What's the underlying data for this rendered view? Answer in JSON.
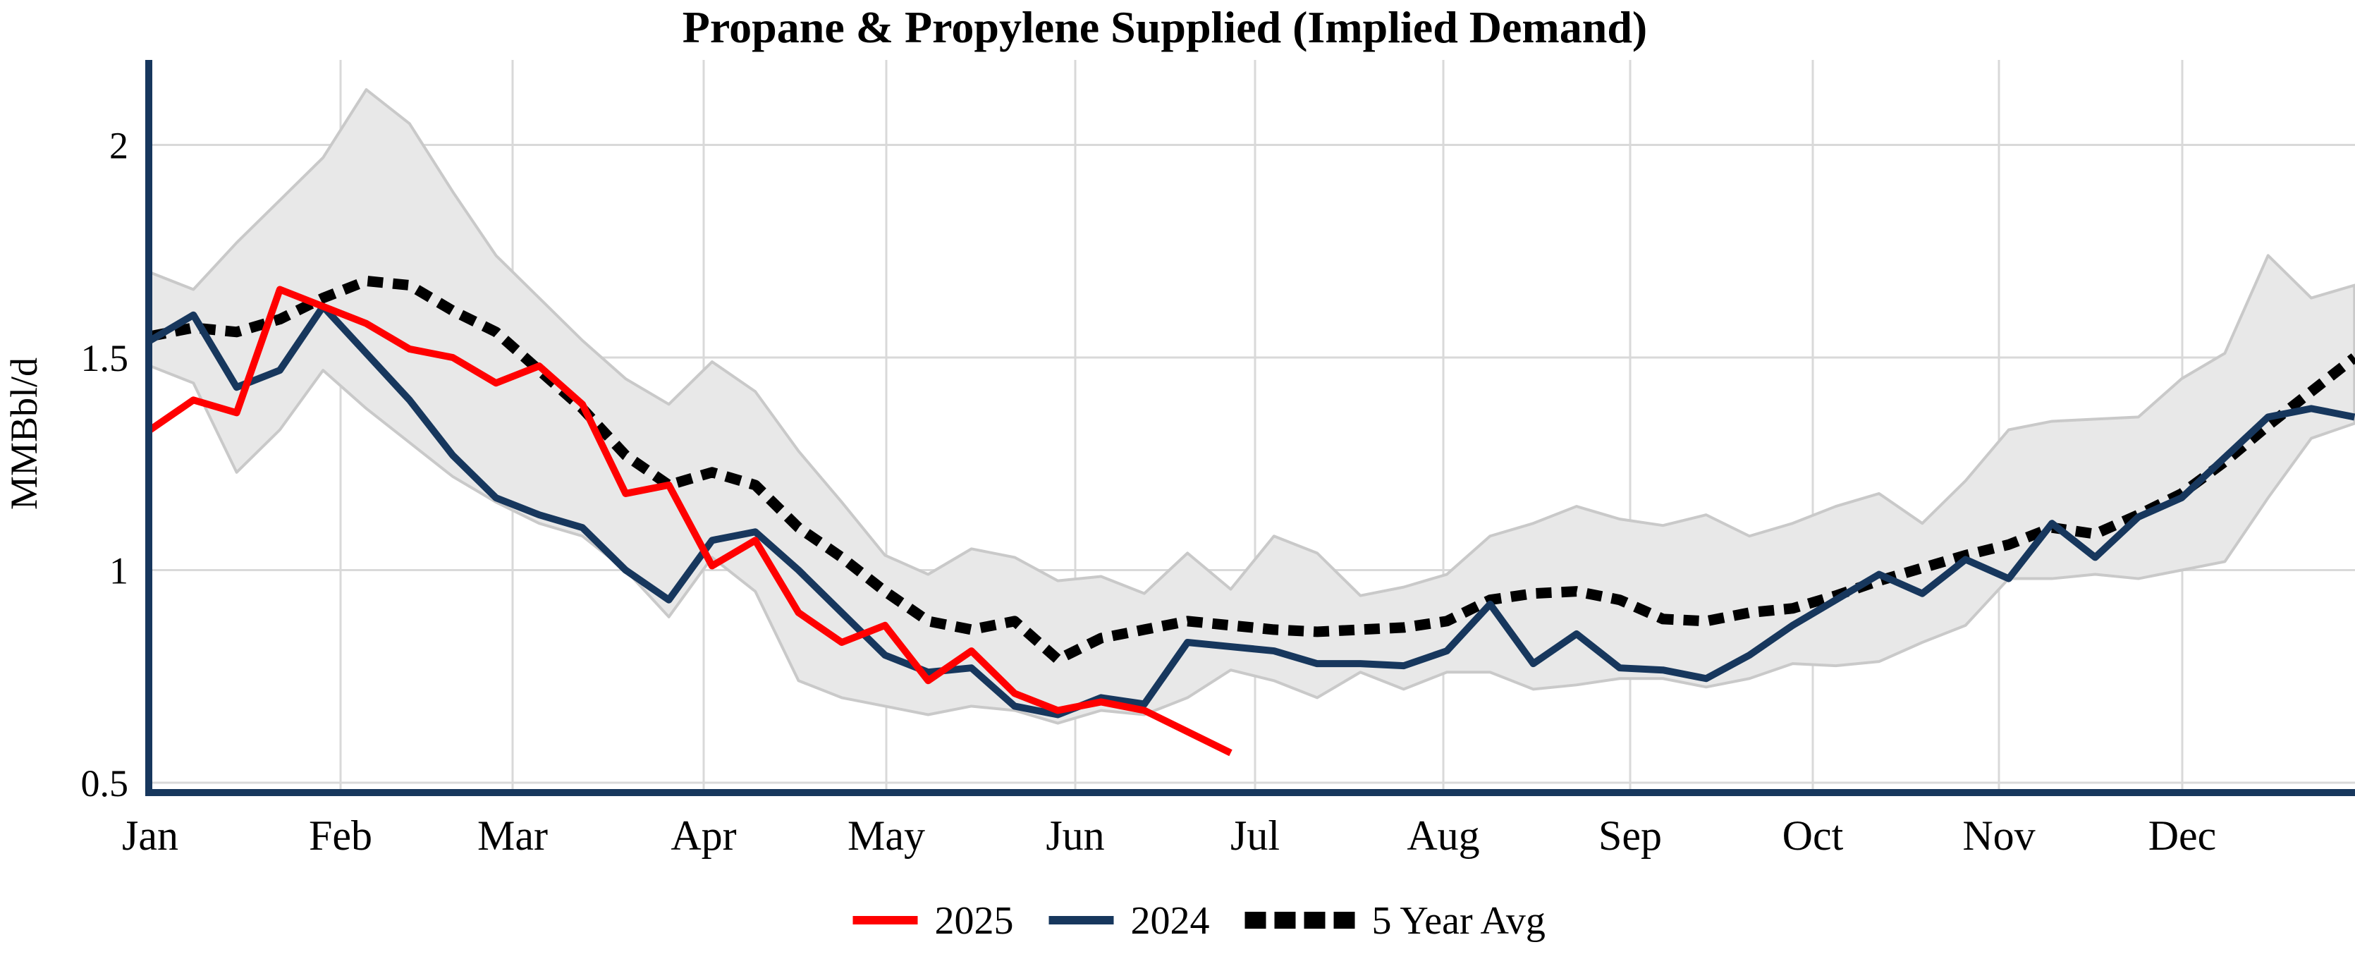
{
  "title": "Propane & Propylene Supplied (Implied Demand)",
  "y_axis": {
    "label": "MMBbl/d",
    "ticks": [
      {
        "label": "2",
        "value": 2.0
      },
      {
        "label": "1.5",
        "value": 1.5
      },
      {
        "label": "1",
        "value": 1.0
      },
      {
        "label": "0.5",
        "value": 0.5
      }
    ]
  },
  "x_axis": {
    "labels": [
      "Jan",
      "Feb",
      "Mar",
      "Apr",
      "May",
      "Jun",
      "Jul",
      "Aug",
      "Sep",
      "Oct",
      "Nov",
      "Dec"
    ]
  },
  "legend": {
    "items": [
      {
        "label": "2025",
        "color": "#ff0000",
        "style": "solid"
      },
      {
        "label": "2024",
        "color": "#17375d",
        "style": "solid"
      },
      {
        "label": "5 Year Avg",
        "color": "#000000",
        "style": "dotted"
      }
    ]
  },
  "colors": {
    "series_2025": "#ff0000",
    "series_2024": "#17375d",
    "series_avg": "#000000",
    "band_fill": "#e8e8e8",
    "band_edge": "#c9c9c9",
    "gridline": "#d9d9d9",
    "axis": "#17375d",
    "background": "#ffffff"
  },
  "chart_data": {
    "type": "line",
    "title": "Propane & Propylene Supplied (Implied Demand)",
    "ylabel": "MMBbl/d",
    "xlabel": "",
    "ylim": [
      0.5,
      2.2
    ],
    "yticks": [
      0.5,
      1.0,
      1.5,
      2.0
    ],
    "x_categories_months": [
      "Jan",
      "Feb",
      "Mar",
      "Apr",
      "May",
      "Jun",
      "Jul",
      "Aug",
      "Sep",
      "Oct",
      "Nov",
      "Dec"
    ],
    "x_unit": "weekly points (week 1 = early Jan through week 52 = late Dec)",
    "grid": true,
    "legend_position": "bottom-center",
    "series": [
      {
        "name": "2025",
        "color": "#ff0000",
        "line_style": "solid",
        "weeks": 26,
        "values": [
          1.33,
          1.4,
          1.37,
          1.66,
          1.62,
          1.58,
          1.52,
          1.5,
          1.44,
          1.48,
          1.39,
          1.18,
          1.2,
          1.01,
          1.07,
          0.9,
          0.83,
          0.87,
          0.74,
          0.81,
          0.71,
          0.67,
          0.69,
          0.67,
          0.62,
          0.57
        ]
      },
      {
        "name": "2024",
        "color": "#17375d",
        "line_style": "solid",
        "weeks": 52,
        "values": [
          1.54,
          1.6,
          1.43,
          1.47,
          1.62,
          1.51,
          1.4,
          1.27,
          1.17,
          1.13,
          1.1,
          1.0,
          0.93,
          1.07,
          1.09,
          1.0,
          0.9,
          0.8,
          0.76,
          0.77,
          0.68,
          0.66,
          0.7,
          0.685,
          0.83,
          0.82,
          0.81,
          0.78,
          0.78,
          0.775,
          0.81,
          0.92,
          0.78,
          0.85,
          0.77,
          0.765,
          0.745,
          0.8,
          0.87,
          0.93,
          0.99,
          0.945,
          1.025,
          0.98,
          1.11,
          1.03,
          1.125,
          1.17,
          1.265,
          1.36,
          1.38,
          1.36
        ]
      },
      {
        "name": "5 Year Avg",
        "color": "#000000",
        "line_style": "dotted",
        "weeks": 52,
        "values": [
          1.55,
          1.57,
          1.56,
          1.59,
          1.64,
          1.68,
          1.67,
          1.61,
          1.56,
          1.47,
          1.38,
          1.27,
          1.2,
          1.23,
          1.2,
          1.1,
          1.03,
          0.95,
          0.88,
          0.86,
          0.88,
          0.79,
          0.84,
          0.86,
          0.88,
          0.87,
          0.86,
          0.855,
          0.86,
          0.865,
          0.88,
          0.93,
          0.945,
          0.95,
          0.93,
          0.885,
          0.88,
          0.9,
          0.91,
          0.94,
          0.975,
          1.005,
          1.035,
          1.06,
          1.1,
          1.085,
          1.13,
          1.18,
          1.255,
          1.34,
          1.42,
          1.5
        ]
      }
    ],
    "band": {
      "name": "5-year range",
      "fill": "#e8e8e8",
      "edge": "#c9c9c9",
      "weeks": 52,
      "max": [
        1.7,
        1.66,
        1.77,
        1.87,
        1.97,
        2.13,
        2.05,
        1.89,
        1.74,
        1.64,
        1.54,
        1.45,
        1.39,
        1.49,
        1.42,
        1.28,
        1.16,
        1.035,
        0.99,
        1.05,
        1.03,
        0.975,
        0.985,
        0.945,
        1.04,
        0.955,
        1.08,
        1.04,
        0.94,
        0.96,
        0.99,
        1.08,
        1.11,
        1.15,
        1.12,
        1.105,
        1.13,
        1.08,
        1.11,
        1.15,
        1.18,
        1.11,
        1.21,
        1.33,
        1.35,
        1.355,
        1.36,
        1.45,
        1.51,
        1.74,
        1.64,
        1.67
      ],
      "min": [
        1.48,
        1.44,
        1.23,
        1.33,
        1.47,
        1.38,
        1.3,
        1.22,
        1.16,
        1.11,
        1.08,
        1.0,
        0.89,
        1.03,
        0.95,
        0.74,
        0.7,
        0.68,
        0.66,
        0.68,
        0.67,
        0.64,
        0.67,
        0.66,
        0.7,
        0.765,
        0.74,
        0.7,
        0.76,
        0.72,
        0.76,
        0.76,
        0.72,
        0.73,
        0.745,
        0.745,
        0.725,
        0.745,
        0.78,
        0.775,
        0.785,
        0.83,
        0.87,
        0.98,
        0.98,
        0.99,
        0.98,
        1.0,
        1.02,
        1.17,
        1.31,
        1.345
      ]
    }
  }
}
